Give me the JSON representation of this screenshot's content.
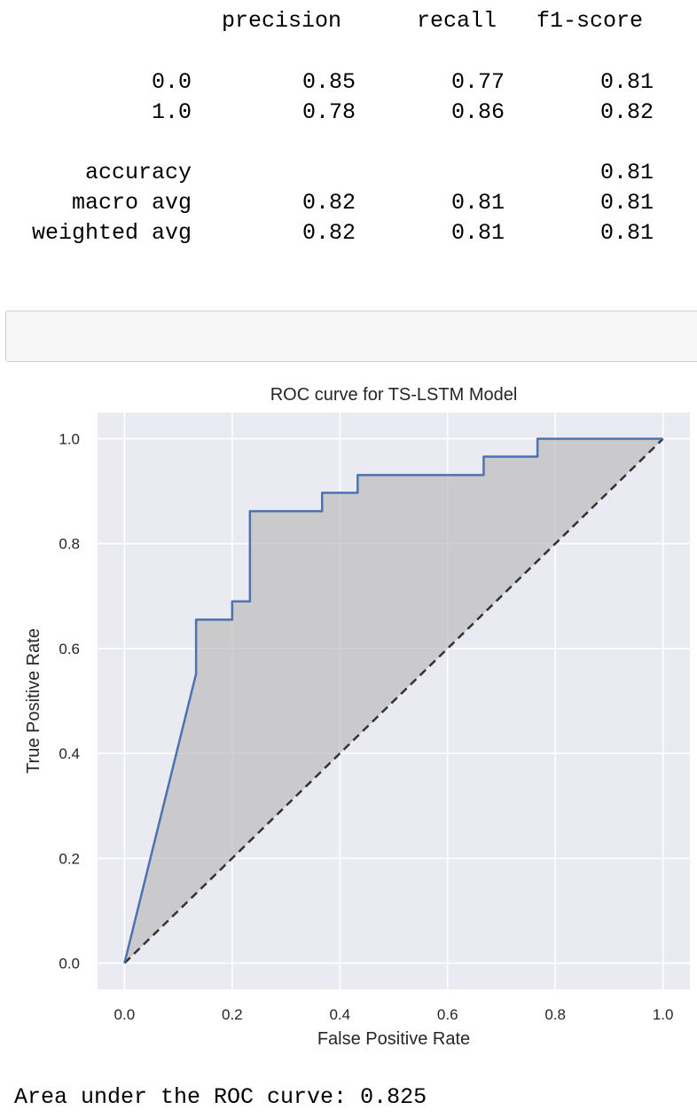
{
  "report": {
    "headers": [
      "precision",
      "recall",
      "f1-score"
    ],
    "rows": [
      {
        "label": "0.0",
        "precision": "0.85",
        "recall": "0.77",
        "f1": "0.81"
      },
      {
        "label": "1.0",
        "precision": "0.78",
        "recall": "0.86",
        "f1": "0.82"
      },
      {
        "label": "accuracy",
        "precision": "",
        "recall": "",
        "f1": "0.81"
      },
      {
        "label": "macro avg",
        "precision": "0.82",
        "recall": "0.81",
        "f1": "0.81"
      },
      {
        "label": "weighted avg",
        "precision": "0.82",
        "recall": "0.81",
        "f1": "0.81"
      }
    ]
  },
  "colors": {
    "axes_bg": "#eaeaf2",
    "roc_line": "#4c72b0",
    "fill": "#bebebe",
    "diagonal": "#333333",
    "grid": "#ffffff",
    "text": "#262626"
  },
  "chart_data": {
    "type": "line",
    "title": "ROC curve for TS-LSTM Model",
    "xlabel": "False Positive Rate",
    "ylabel": "True Positive Rate",
    "xlim": [
      0.0,
      1.0
    ],
    "ylim": [
      0.0,
      1.0
    ],
    "xticks": [
      0.0,
      0.2,
      0.4,
      0.6,
      0.8,
      1.0
    ],
    "yticks": [
      0.0,
      0.2,
      0.4,
      0.6,
      0.8,
      1.0
    ],
    "xtick_labels": [
      "0.0",
      "0.2",
      "0.4",
      "0.6",
      "0.8",
      "1.0"
    ],
    "ytick_labels": [
      "0.0",
      "0.2",
      "0.4",
      "0.6",
      "0.8",
      "1.0"
    ],
    "grid": true,
    "fill_under_curve": true,
    "series": [
      {
        "x": [
          0.0,
          0.133,
          0.133,
          0.2,
          0.2,
          0.233,
          0.233,
          0.367,
          0.367,
          0.433,
          0.433,
          0.667,
          0.667,
          0.767,
          0.767,
          1.0
        ],
        "y": [
          0.0,
          0.552,
          0.655,
          0.655,
          0.69,
          0.69,
          0.862,
          0.862,
          0.897,
          0.897,
          0.931,
          0.931,
          0.966,
          0.966,
          1.0,
          1.0
        ]
      },
      {
        "x": [
          0.0,
          1.0
        ],
        "y": [
          0.0,
          1.0
        ],
        "style": "dashed"
      }
    ]
  },
  "auc_text": "Area under the ROC curve: 0.825"
}
